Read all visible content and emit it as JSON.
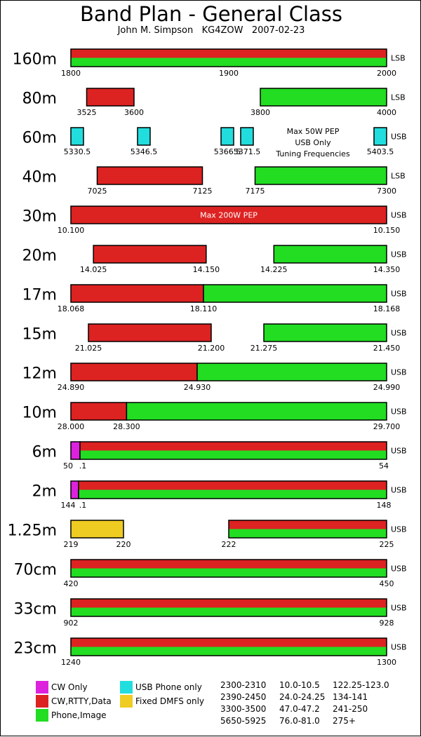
{
  "header": {
    "title": "Band Plan - General Class",
    "subtitle": "John M. Simpson   KG4ZOW   2007-02-23"
  },
  "colors": {
    "cw_only": "#dd22dd",
    "cw_rtty_data": "#dd2222",
    "phone_image": "#22dd22",
    "usb_phone_only": "#22dddd",
    "fixed_dmfs_only": "#eecc22"
  },
  "chart_data": {
    "type": "band-plan",
    "bands": [
      {
        "name": "160m",
        "mode": "LSB",
        "ticks": [
          "1800",
          "1900",
          "2000"
        ],
        "segments": [
          {
            "from": 1800,
            "to": 2000,
            "use": "cw_rtty_data+phone_image"
          }
        ],
        "range": [
          1800,
          2000
        ]
      },
      {
        "name": "80m",
        "mode": "LSB",
        "ticks": [
          "3525",
          "3600",
          "3800",
          "4000"
        ],
        "segments": [
          {
            "from": 3525,
            "to": 3600,
            "use": "cw_rtty_data"
          },
          {
            "from": 3800,
            "to": 4000,
            "use": "phone_image"
          }
        ],
        "range": [
          3500,
          4000
        ]
      },
      {
        "name": "60m",
        "mode": "USB",
        "ticks": [
          "5330.5",
          "5346.5",
          "5366.5",
          "5371.5",
          "5403.5"
        ],
        "segments": [
          {
            "center": 5330.5,
            "use": "usb_phone_only"
          },
          {
            "center": 5346.5,
            "use": "usb_phone_only"
          },
          {
            "center": 5366.5,
            "use": "usb_phone_only"
          },
          {
            "center": 5371.5,
            "use": "usb_phone_only"
          },
          {
            "center": 5403.5,
            "use": "usb_phone_only"
          }
        ],
        "note": [
          "Max 50W PEP",
          "USB Only",
          "Tuning Frequencies"
        ]
      },
      {
        "name": "40m",
        "mode": "LSB",
        "ticks": [
          "7025",
          "7125",
          "7175",
          "7300"
        ],
        "segments": [
          {
            "from": 7025,
            "to": 7125,
            "use": "cw_rtty_data"
          },
          {
            "from": 7175,
            "to": 7300,
            "use": "phone_image"
          }
        ],
        "range": [
          7000,
          7300
        ]
      },
      {
        "name": "30m",
        "mode": "USB",
        "ticks": [
          "10.100",
          "10.150"
        ],
        "segments": [
          {
            "from": 10.1,
            "to": 10.15,
            "use": "cw_rtty_data"
          }
        ],
        "range": [
          10.1,
          10.15
        ],
        "annotation": "Max 200W PEP"
      },
      {
        "name": "20m",
        "mode": "USB",
        "ticks": [
          "14.025",
          "14.150",
          "14.225",
          "14.350"
        ],
        "segments": [
          {
            "from": 14.025,
            "to": 14.15,
            "use": "cw_rtty_data"
          },
          {
            "from": 14.225,
            "to": 14.35,
            "use": "phone_image"
          }
        ],
        "range": [
          14.0,
          14.35
        ]
      },
      {
        "name": "17m",
        "mode": "USB",
        "ticks": [
          "18.068",
          "18.110",
          "18.168"
        ],
        "segments": [
          {
            "from": 18.068,
            "to": 18.11,
            "use": "cw_rtty_data"
          },
          {
            "from": 18.11,
            "to": 18.168,
            "use": "phone_image"
          }
        ],
        "range": [
          18.068,
          18.168
        ]
      },
      {
        "name": "15m",
        "mode": "USB",
        "ticks": [
          "21.025",
          "21.200",
          "21.275",
          "21.450"
        ],
        "segments": [
          {
            "from": 21.025,
            "to": 21.2,
            "use": "cw_rtty_data"
          },
          {
            "from": 21.275,
            "to": 21.45,
            "use": "phone_image"
          }
        ],
        "range": [
          21.0,
          21.45
        ]
      },
      {
        "name": "12m",
        "mode": "USB",
        "ticks": [
          "24.890",
          "24.930",
          "24.990"
        ],
        "segments": [
          {
            "from": 24.89,
            "to": 24.93,
            "use": "cw_rtty_data"
          },
          {
            "from": 24.93,
            "to": 24.99,
            "use": "phone_image"
          }
        ],
        "range": [
          24.89,
          24.99
        ]
      },
      {
        "name": "10m",
        "mode": "USB",
        "ticks": [
          "28.000",
          "28.300",
          "29.700"
        ],
        "segments": [
          {
            "from": 28.0,
            "to": 28.3,
            "use": "cw_rtty_data"
          },
          {
            "from": 28.3,
            "to": 29.7,
            "use": "phone_image"
          }
        ],
        "range": [
          28.0,
          29.7
        ]
      },
      {
        "name": "6m",
        "mode": "USB",
        "ticks": [
          "50",
          ".1",
          "54"
        ],
        "segments": [
          {
            "from": 50.0,
            "to": 50.1,
            "use": "cw_only"
          },
          {
            "from": 50.1,
            "to": 54.0,
            "use": "cw_rtty_data+phone_image"
          }
        ],
        "range": [
          50,
          54
        ]
      },
      {
        "name": "2m",
        "mode": "USB",
        "ticks": [
          "144",
          ".1",
          "148"
        ],
        "segments": [
          {
            "from": 144.0,
            "to": 144.1,
            "use": "cw_only"
          },
          {
            "from": 144.1,
            "to": 148.0,
            "use": "cw_rtty_data+phone_image"
          }
        ],
        "range": [
          144,
          148
        ]
      },
      {
        "name": "1.25m",
        "mode": "USB",
        "ticks": [
          "219",
          "220",
          "222",
          "225"
        ],
        "segments": [
          {
            "from": 219,
            "to": 220,
            "use": "fixed_dmfs_only"
          },
          {
            "from": 222,
            "to": 225,
            "use": "cw_rtty_data+phone_image"
          }
        ],
        "range": [
          219,
          225
        ]
      },
      {
        "name": "70cm",
        "mode": "USB",
        "ticks": [
          "420",
          "450"
        ],
        "segments": [
          {
            "from": 420,
            "to": 450,
            "use": "cw_rtty_data+phone_image"
          }
        ],
        "range": [
          420,
          450
        ]
      },
      {
        "name": "33cm",
        "mode": "USB",
        "ticks": [
          "902",
          "928"
        ],
        "segments": [
          {
            "from": 902,
            "to": 928,
            "use": "cw_rtty_data+phone_image"
          }
        ],
        "range": [
          902,
          928
        ]
      },
      {
        "name": "23cm",
        "mode": "USB",
        "ticks": [
          "1240",
          "1300"
        ],
        "segments": [
          {
            "from": 1240,
            "to": 1300,
            "use": "cw_rtty_data+phone_image"
          }
        ],
        "range": [
          1240,
          1300
        ]
      }
    ]
  },
  "legend": {
    "items": [
      {
        "label": "CW Only",
        "color": "#dd22dd"
      },
      {
        "label": "CW,RTTY,Data",
        "color": "#dd2222"
      },
      {
        "label": "Phone,Image",
        "color": "#22dd22"
      },
      {
        "label": "USB Phone only",
        "color": "#22dddd"
      },
      {
        "label": "Fixed DMFS only",
        "color": "#eecc22"
      }
    ],
    "higher_bands": [
      [
        "2300-2310",
        "2390-2450",
        "3300-3500",
        "5650-5925"
      ],
      [
        "10.0-10.5",
        "24.0-24.25",
        "47.0-47.2",
        "76.0-81.0"
      ],
      [
        "122.25-123.0",
        "134-141",
        "241-250",
        "275+"
      ]
    ]
  }
}
